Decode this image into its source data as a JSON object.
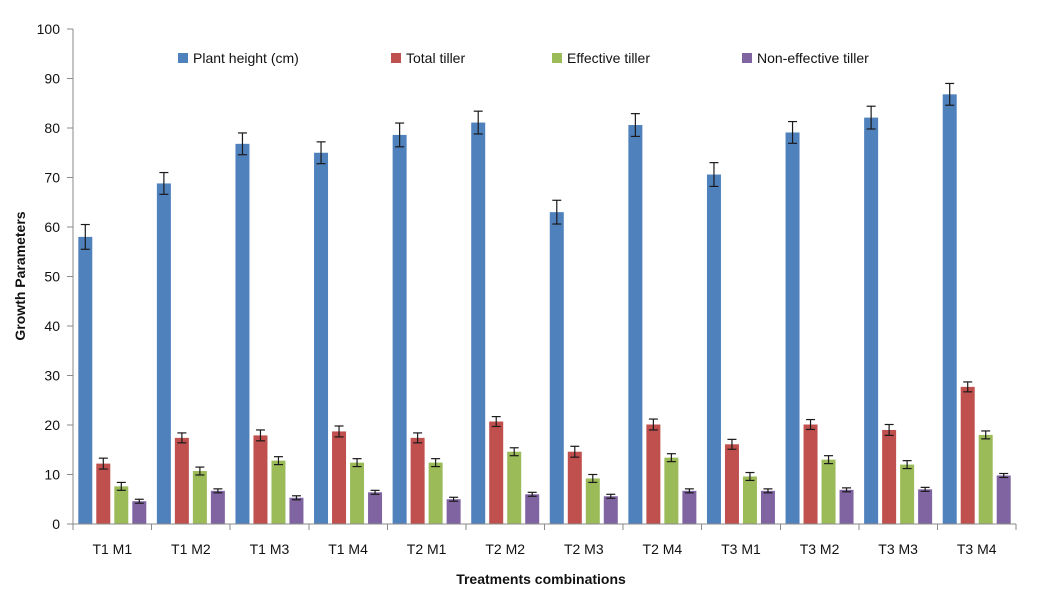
{
  "chart_data": {
    "type": "bar",
    "title": "",
    "xlabel": "Treatments combinations",
    "ylabel": "Growth Parameters",
    "ylim": [
      0,
      100
    ],
    "yticks": [
      0,
      10,
      20,
      30,
      40,
      50,
      60,
      70,
      80,
      90,
      100
    ],
    "grid": false,
    "legend_position": "top",
    "error_bars": true,
    "categories": [
      "T1 M1",
      "T1 M2",
      "T1 M3",
      "T1 M4",
      "T2 M1",
      "T2 M2",
      "T2 M3",
      "T2 M4",
      "T3 M1",
      "T3 M2",
      "T3 M3",
      "T3 M4"
    ],
    "series": [
      {
        "name": "Plant height (cm)",
        "color": "#4F81BD",
        "values": [
          58,
          68.8,
          76.8,
          75,
          78.6,
          81.1,
          63,
          80.6,
          70.6,
          79.1,
          82.1,
          86.8
        ],
        "errors": [
          2.5,
          2.2,
          2.2,
          2.2,
          2.4,
          2.3,
          2.4,
          2.3,
          2.4,
          2.2,
          2.3,
          2.2
        ]
      },
      {
        "name": "Total tiller",
        "color": "#C0504D",
        "values": [
          12.2,
          17.4,
          17.9,
          18.7,
          17.4,
          20.7,
          14.6,
          20.1,
          16.1,
          20.1,
          19,
          27.7
        ],
        "errors": [
          1.1,
          1,
          1.1,
          1.1,
          1,
          1,
          1.1,
          1.1,
          1,
          1,
          1.1,
          1
        ]
      },
      {
        "name": "Effective tiller",
        "color": "#9BBB59",
        "values": [
          7.6,
          10.7,
          12.8,
          12.4,
          12.4,
          14.6,
          9.2,
          13.4,
          9.6,
          13,
          12,
          18
        ],
        "errors": [
          0.8,
          0.8,
          0.8,
          0.8,
          0.8,
          0.8,
          0.8,
          0.8,
          0.8,
          0.8,
          0.8,
          0.8
        ]
      },
      {
        "name": "Non-effective tiller",
        "color": "#8064A2",
        "values": [
          4.6,
          6.7,
          5.3,
          6.4,
          5,
          6,
          5.6,
          6.7,
          6.7,
          6.9,
          7,
          9.8
        ],
        "errors": [
          0.4,
          0.4,
          0.4,
          0.4,
          0.4,
          0.4,
          0.4,
          0.4,
          0.4,
          0.4,
          0.4,
          0.4
        ]
      }
    ]
  }
}
